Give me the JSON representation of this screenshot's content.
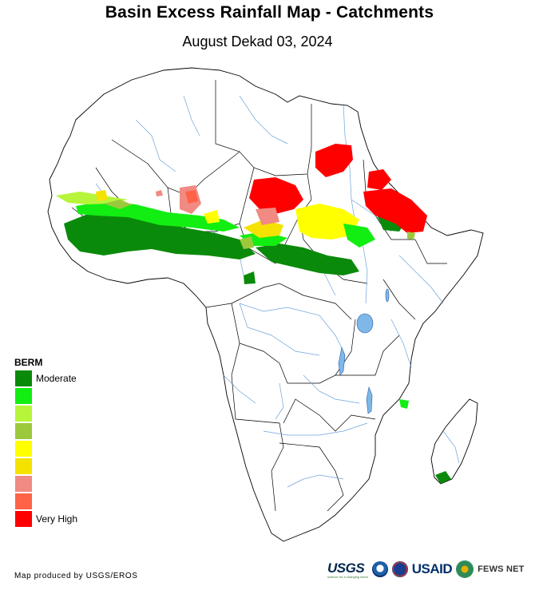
{
  "title": "Basin Excess Rainfall Map - Catchments",
  "subtitle": "August Dekad 03, 2024",
  "legend": {
    "title": "BERM",
    "classes": [
      {
        "label": "Moderate",
        "color": "#0a8a0a"
      },
      {
        "label": "",
        "color": "#12ee12"
      },
      {
        "label": "",
        "color": "#b6f53a"
      },
      {
        "label": "",
        "color": "#9cc93c"
      },
      {
        "label": "",
        "color": "#ffff00"
      },
      {
        "label": "",
        "color": "#f5e200"
      },
      {
        "label": "",
        "color": "#f08a82"
      },
      {
        "label": "",
        "color": "#ff6347"
      },
      {
        "label": "Very High",
        "color": "#ff0000"
      }
    ]
  },
  "credit": "Map produced by USGS/EROS",
  "logos": {
    "usgs": "USGS",
    "usgs_tagline": "science for a changing world",
    "usaid": "USAID",
    "fews": "FEWS NET"
  },
  "colors": {
    "land": "#ffffff",
    "border": "#000000",
    "river": "#5b9bd5",
    "lake": "#7fb8e8"
  }
}
